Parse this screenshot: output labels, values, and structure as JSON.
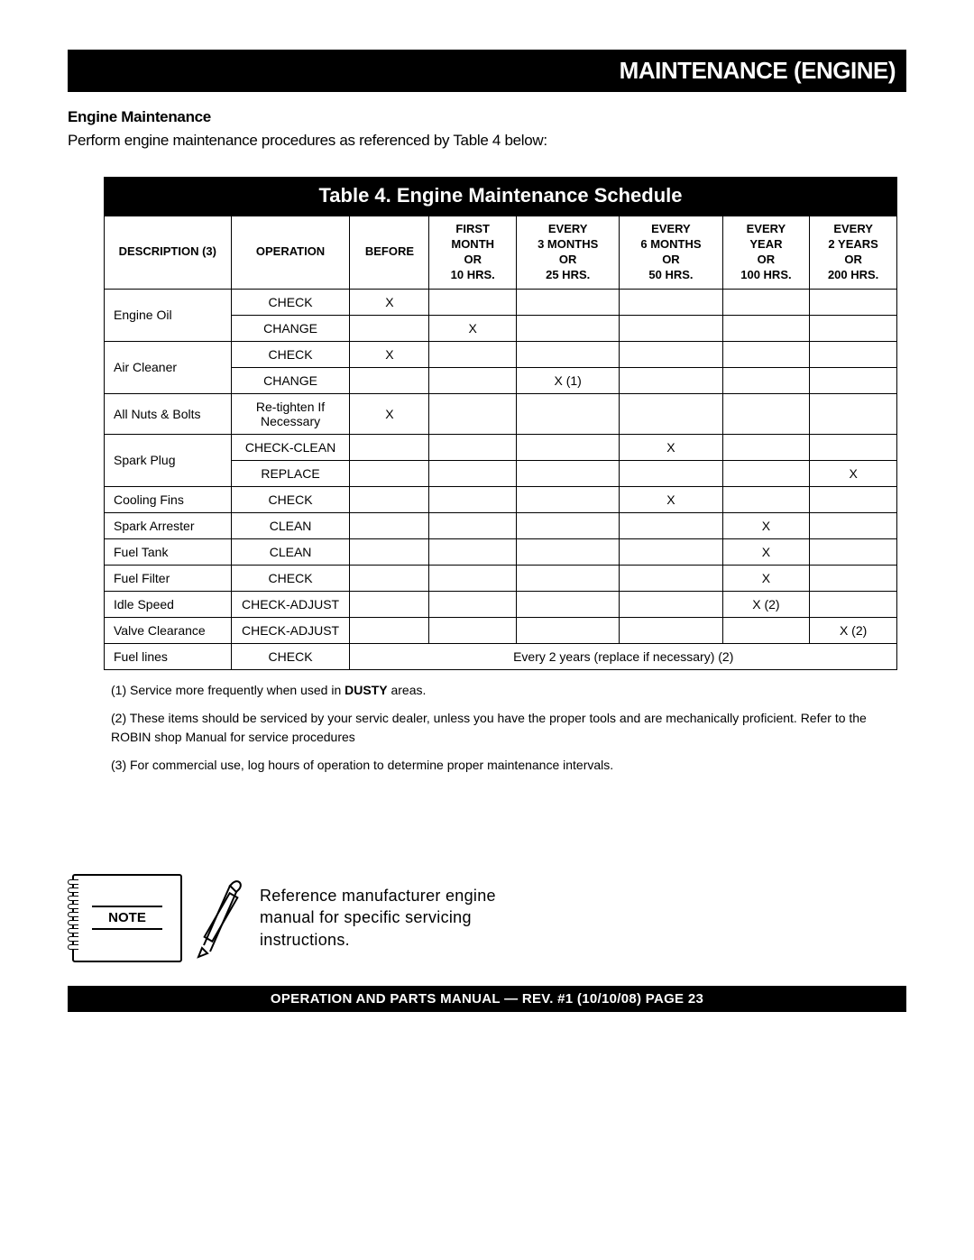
{
  "header": {
    "title": "MAINTENANCE (ENGINE)"
  },
  "section": {
    "title": "Engine Maintenance",
    "intro": "Perform engine maintenance procedures as referenced by Table 4 below:"
  },
  "table": {
    "title": "Table 4. Engine Maintenance Schedule",
    "colors": {
      "header_bg": "#000000",
      "header_fg": "#ffffff",
      "border": "#000000"
    },
    "columns": {
      "desc": "DESCRIPTION (3)",
      "operation": "OPERATION",
      "before": "BEFORE",
      "c1": "FIRST\nMONTH\nOR\n10 HRS.",
      "c2": "EVERY\n3 MONTHS\nOR\n25 HRS.",
      "c3": "EVERY\n6 MONTHS\nOR\n50 HRS.",
      "c4": "EVERY\nYEAR\nOR\n100 HRS.",
      "c5": "EVERY\n2 YEARS\nOR\n200 HRS."
    },
    "rows": [
      {
        "desc": "Engine Oil",
        "rowspan": 2,
        "operation": "CHECK",
        "before": "X",
        "c1": "",
        "c2": "",
        "c3": "",
        "c4": "",
        "c5": ""
      },
      {
        "operation": "CHANGE",
        "before": "",
        "c1": "X",
        "c2": "",
        "c3": "",
        "c4": "",
        "c5": ""
      },
      {
        "desc": "Air Cleaner",
        "rowspan": 2,
        "operation": "CHECK",
        "before": "X",
        "c1": "",
        "c2": "",
        "c3": "",
        "c4": "",
        "c5": ""
      },
      {
        "operation": "CHANGE",
        "before": "",
        "c1": "",
        "c2": "X (1)",
        "c3": "",
        "c4": "",
        "c5": ""
      },
      {
        "desc": "All Nuts & Bolts",
        "operation": "Re-tighten If\nNecessary",
        "before": "X",
        "c1": "",
        "c2": "",
        "c3": "",
        "c4": "",
        "c5": ""
      },
      {
        "desc": "Spark Plug",
        "rowspan": 2,
        "operation": "CHECK-CLEAN",
        "before": "",
        "c1": "",
        "c2": "",
        "c3": "X",
        "c4": "",
        "c5": ""
      },
      {
        "operation": "REPLACE",
        "before": "",
        "c1": "",
        "c2": "",
        "c3": "",
        "c4": "",
        "c5": "X"
      },
      {
        "desc": "Cooling Fins",
        "operation": "CHECK",
        "before": "",
        "c1": "",
        "c2": "",
        "c3": "X",
        "c4": "",
        "c5": ""
      },
      {
        "desc": "Spark Arrester",
        "operation": "CLEAN",
        "before": "",
        "c1": "",
        "c2": "",
        "c3": "",
        "c4": "X",
        "c5": ""
      },
      {
        "desc": "Fuel Tank",
        "operation": "CLEAN",
        "before": "",
        "c1": "",
        "c2": "",
        "c3": "",
        "c4": "X",
        "c5": ""
      },
      {
        "desc": "Fuel Filter",
        "operation": "CHECK",
        "before": "",
        "c1": "",
        "c2": "",
        "c3": "",
        "c4": "X",
        "c5": ""
      },
      {
        "desc": "Idle Speed",
        "operation": "CHECK-ADJUST",
        "before": "",
        "c1": "",
        "c2": "",
        "c3": "",
        "c4": "X (2)",
        "c5": ""
      },
      {
        "desc": "Valve Clearance",
        "operation": "CHECK-ADJUST",
        "before": "",
        "c1": "",
        "c2": "",
        "c3": "",
        "c4": "",
        "c5": "X (2)"
      },
      {
        "desc": "Fuel lines",
        "operation": "CHECK",
        "merged": "Every 2 years (replace if necessary) (2)"
      }
    ],
    "col_widths": {
      "desc": "16%",
      "operation": "15%",
      "before": "10%",
      "c1": "11%",
      "c2": "13%",
      "c3": "13%",
      "c4": "11%",
      "c5": "11%"
    }
  },
  "footnotes": {
    "n1_pre": "(1) Service more frequently when used in ",
    "n1_bold": "DUSTY",
    "n1_post": " areas.",
    "n2": "(2) These items should be serviced by your servic dealer, unless you have the proper tools and are mechanically proficient. Refer to the ROBIN shop Manual for service procedures",
    "n3": "(3) For commercial use, log hours of operation to determine proper maintenance intervals."
  },
  "note": {
    "label": "NOTE",
    "text": "Reference manufacturer engine manual for specific servicing instructions."
  },
  "footer": {
    "text": "OPERATION AND PARTS MANUAL — REV. #1 (10/10/08) PAGE 23"
  }
}
